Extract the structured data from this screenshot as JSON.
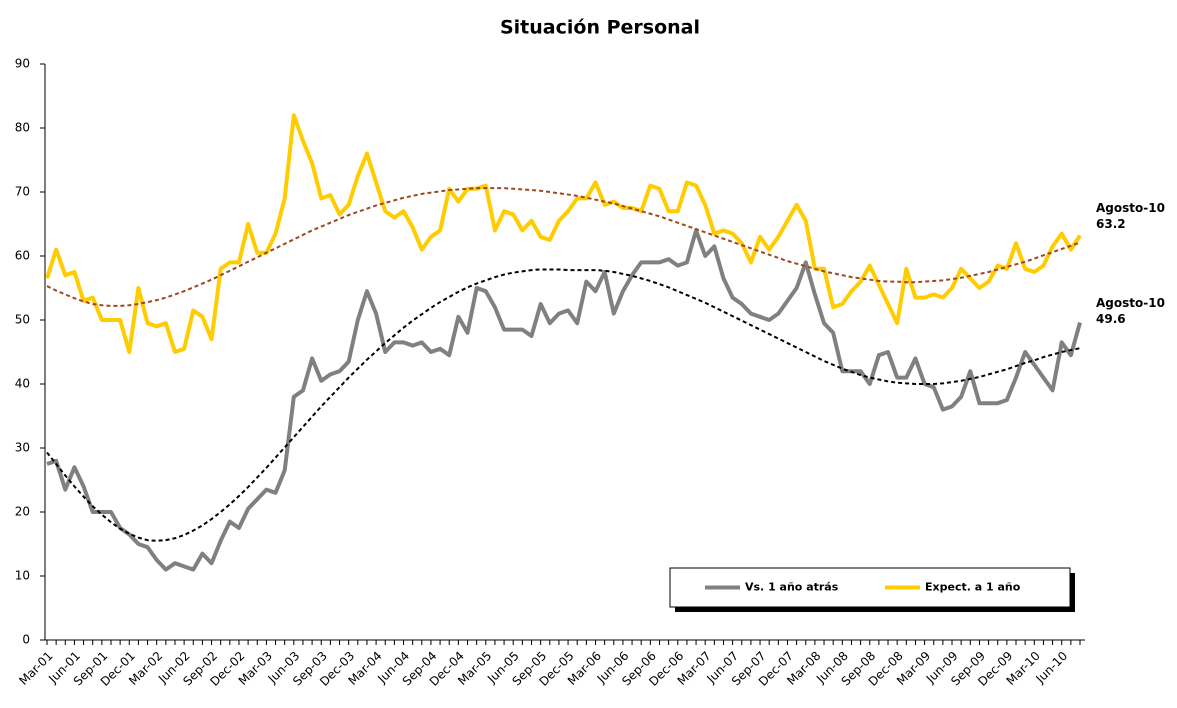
{
  "chart_data": {
    "type": "line",
    "title": "Situación Personal",
    "categories": [
      "Mar-01",
      null,
      null,
      "Jun-01",
      null,
      null,
      "Sep-01",
      null,
      null,
      "Dec-01",
      null,
      null,
      "Mar-02",
      null,
      null,
      "Jun-02",
      null,
      null,
      "Sep-02",
      null,
      null,
      "Dec-02",
      null,
      null,
      "Mar-03",
      null,
      null,
      "Jun-03",
      null,
      null,
      "Sep-03",
      null,
      null,
      "Dec-03",
      null,
      null,
      "Mar-04",
      null,
      null,
      "Jun-04",
      null,
      null,
      "Sep-04",
      null,
      null,
      "Dec-04",
      null,
      null,
      "Mar-05",
      null,
      null,
      "Jun-05",
      null,
      null,
      "Sep-05",
      null,
      null,
      "Dec-05",
      null,
      null,
      "Mar-06",
      null,
      null,
      "Jun-06",
      null,
      null,
      "Sep-06",
      null,
      null,
      "Dec-06",
      null,
      null,
      "Mar-07",
      null,
      null,
      "Jun-07",
      null,
      null,
      "Sep-07",
      null,
      null,
      "Dec-07",
      null,
      null,
      "Mar-08",
      null,
      null,
      "Jun-08",
      null,
      null,
      "Sep-08",
      null,
      null,
      "Dec-08",
      null,
      null,
      "Mar-09",
      null,
      null,
      "Jun-09",
      null,
      null,
      "Sep-09",
      null,
      null,
      "Dec-09",
      null,
      null,
      "Mar-10",
      null,
      null,
      "Jun-10",
      null,
      null
    ],
    "series": [
      {
        "name": "Vs. 1 año atrás",
        "color": "#808080",
        "end_label": "Agosto-10",
        "values": [
          27.5,
          28,
          23.5,
          27,
          24,
          20,
          20,
          20,
          17.5,
          16.5,
          15,
          14.5,
          12.5,
          11,
          12,
          11.5,
          11,
          13.5,
          12,
          15.5,
          18.5,
          17.5,
          20.5,
          22,
          23.5,
          23,
          26.5,
          38,
          39,
          44,
          40.5,
          41.5,
          42,
          43.5,
          50,
          54.5,
          51,
          45,
          46.5,
          46.5,
          46,
          46.5,
          45,
          45.5,
          44.5,
          50.5,
          48,
          55,
          54.5,
          52,
          48.5,
          48.5,
          48.5,
          47.5,
          52.5,
          49.5,
          51,
          51.5,
          49.5,
          56,
          54.5,
          57.5,
          51,
          54.5,
          57,
          59,
          59,
          59,
          59.5,
          58.5,
          59,
          64,
          60,
          61.5,
          56.5,
          53.5,
          52.5,
          51,
          50.5,
          50,
          51,
          53,
          55,
          59,
          54,
          49.5,
          48,
          42,
          42,
          42,
          40,
          44.5,
          45,
          41,
          41,
          44,
          40,
          39.5,
          36,
          36.5,
          38,
          42,
          37,
          37,
          37,
          37.5,
          41,
          45,
          43,
          41,
          39,
          46.5,
          44.5,
          49.6
        ]
      },
      {
        "name": "Expect. a 1 año",
        "color": "#ffcc00",
        "end_label": "Agosto-10",
        "values": [
          56.5,
          61,
          57,
          57.5,
          53,
          53.5,
          50,
          50,
          50,
          45,
          55,
          49.5,
          49,
          49.5,
          45,
          45.5,
          51.5,
          50.5,
          47,
          58,
          59,
          59,
          65,
          60.5,
          60.5,
          63.5,
          69,
          82,
          78,
          74.5,
          69,
          69.5,
          66.5,
          68,
          72.5,
          76,
          71.5,
          67,
          66,
          67,
          64.5,
          61,
          63,
          64,
          70.5,
          68.5,
          70.5,
          70.5,
          71,
          64,
          67,
          66.5,
          64,
          65.5,
          63,
          62.5,
          65.5,
          67,
          69,
          69,
          71.5,
          68,
          68.5,
          67.5,
          67.5,
          67,
          71,
          70.5,
          67,
          67,
          71.5,
          71,
          68,
          63.5,
          64,
          63.5,
          62,
          59,
          63,
          61,
          63,
          65.5,
          68,
          65.5,
          58,
          58,
          52,
          52.5,
          54.5,
          56,
          58.5,
          55.5,
          52.5,
          49.5,
          58,
          53.5,
          53.5,
          54,
          53.5,
          55,
          58,
          56.5,
          55,
          56,
          58.5,
          58,
          62,
          58,
          57.5,
          58.5,
          61.5,
          63.5,
          61,
          63.2
        ]
      },
      {
        "color": "#000000",
        "style": "dashed",
        "values": [
          29.3,
          27.5,
          25.7,
          24.0,
          22.4,
          20.9,
          19.6,
          18.4,
          17.4,
          16.6,
          16.0,
          15.6,
          15.5,
          15.6,
          15.9,
          16.4,
          17.1,
          17.9,
          18.9,
          20.0,
          21.2,
          22.5,
          23.9,
          25.4,
          26.9,
          28.5,
          30.1,
          31.7,
          33.3,
          34.9,
          36.5,
          38.0,
          39.5,
          41.0,
          42.4,
          43.8,
          45.1,
          46.4,
          47.6,
          48.8,
          49.9,
          50.9,
          51.9,
          52.8,
          53.6,
          54.4,
          55.1,
          55.7,
          56.2,
          56.7,
          57.1,
          57.4,
          57.6,
          57.8,
          57.9,
          57.9,
          57.9,
          57.8,
          57.8,
          57.8,
          57.8,
          57.7,
          57.5,
          57.2,
          56.9,
          56.5,
          56.1,
          55.6,
          55.1,
          54.5,
          53.9,
          53.3,
          52.7,
          52.0,
          51.3,
          50.6,
          49.9,
          49.2,
          48.5,
          47.8,
          47.1,
          46.4,
          45.7,
          45.0,
          44.3,
          43.6,
          43.0,
          42.4,
          41.9,
          41.4,
          41.0,
          40.7,
          40.4,
          40.2,
          40.1,
          40.0,
          40.0,
          40.0,
          40.1,
          40.3,
          40.5,
          40.8,
          41.1,
          41.5,
          41.9,
          42.3,
          42.8,
          43.3,
          43.7,
          44.2,
          44.6,
          45.0,
          45.3,
          45.6
        ]
      },
      {
        "color": "#a0461e",
        "style": "dashed",
        "values": [
          55.3,
          54.6,
          54.0,
          53.4,
          52.9,
          52.5,
          52.3,
          52.2,
          52.2,
          52.3,
          52.5,
          52.8,
          53.1,
          53.5,
          54.0,
          54.5,
          55.1,
          55.7,
          56.3,
          57.0,
          57.7,
          58.4,
          59.1,
          59.8,
          60.5,
          61.2,
          61.9,
          62.6,
          63.3,
          64.0,
          64.6,
          65.2,
          65.8,
          66.4,
          66.9,
          67.4,
          67.9,
          68.3,
          68.7,
          69.1,
          69.4,
          69.7,
          69.9,
          70.1,
          70.3,
          70.4,
          70.5,
          70.6,
          70.6,
          70.6,
          70.6,
          70.5,
          70.4,
          70.3,
          70.2,
          70.0,
          69.8,
          69.6,
          69.4,
          69.1,
          68.8,
          68.5,
          68.2,
          67.8,
          67.4,
          67.0,
          66.6,
          66.2,
          65.7,
          65.2,
          64.7,
          64.2,
          63.7,
          63.2,
          62.7,
          62.2,
          61.7,
          61.2,
          60.7,
          60.2,
          59.7,
          59.2,
          58.8,
          58.4,
          58.0,
          57.6,
          57.3,
          57.0,
          56.7,
          56.5,
          56.3,
          56.1,
          56.0,
          56.0,
          55.9,
          55.9,
          56.0,
          56.1,
          56.2,
          56.4,
          56.6,
          56.9,
          57.2,
          57.5,
          57.9,
          58.3,
          58.7,
          59.1,
          59.6,
          60.1,
          60.6,
          61.1,
          61.6,
          62.1
        ]
      }
    ],
    "ylim": [
      0,
      90
    ],
    "yticks": [
      0,
      10,
      20,
      30,
      40,
      50,
      60,
      70,
      80,
      90
    ],
    "grid": false,
    "legend": "lower right"
  }
}
